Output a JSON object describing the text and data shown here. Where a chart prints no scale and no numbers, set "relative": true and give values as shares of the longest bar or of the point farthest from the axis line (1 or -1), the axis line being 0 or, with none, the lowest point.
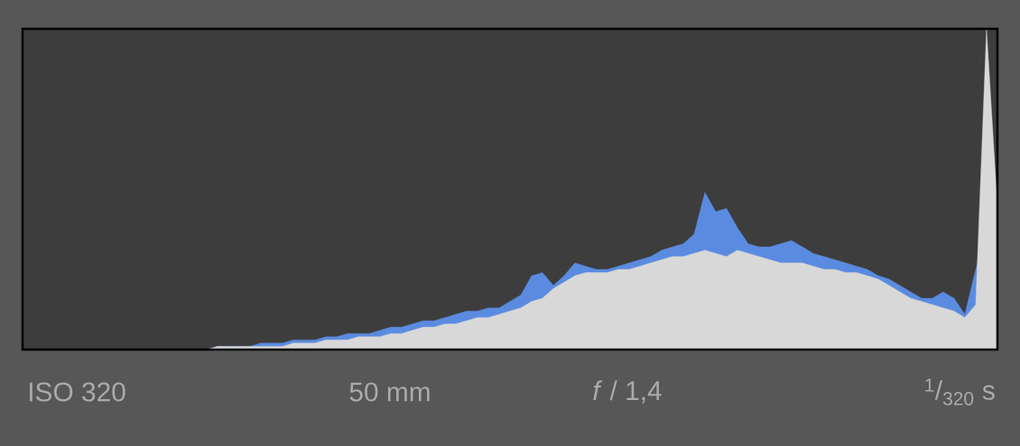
{
  "chart_data": {
    "type": "area",
    "relative": true,
    "categories": [
      null,
      null,
      null,
      null,
      null,
      null,
      null,
      null,
      null,
      null,
      null,
      null,
      null,
      null,
      null,
      null,
      null,
      null,
      null,
      null,
      null,
      null,
      null,
      null,
      null,
      null,
      null,
      null,
      null,
      null,
      null,
      null,
      null,
      null,
      null,
      null,
      null,
      null,
      null,
      null,
      null,
      null,
      null,
      null,
      null,
      null,
      null,
      null,
      null,
      null,
      null,
      null,
      null,
      null,
      null,
      null,
      null,
      null,
      null,
      null,
      null,
      null,
      null,
      null,
      null,
      null,
      null,
      null,
      null,
      null,
      null,
      null,
      null,
      null,
      null,
      null,
      null,
      null,
      null,
      null,
      null,
      null,
      null,
      null,
      null,
      null,
      null,
      null,
      null,
      null,
      null
    ],
    "series": [
      {
        "color": "#5b8be0",
        "values": [
          0,
          0,
          0,
          0,
          0,
          0,
          0,
          0,
          0,
          0,
          0,
          0,
          0,
          0,
          0,
          0,
          0,
          0,
          0.01,
          0.01,
          0.01,
          0.01,
          0.02,
          0.02,
          0.02,
          0.03,
          0.03,
          0.03,
          0.04,
          0.04,
          0.05,
          0.05,
          0.05,
          0.06,
          0.07,
          0.07,
          0.08,
          0.09,
          0.09,
          0.1,
          0.11,
          0.12,
          0.12,
          0.13,
          0.13,
          0.15,
          0.17,
          0.23,
          0.24,
          0.2,
          0.23,
          0.27,
          0.26,
          0.25,
          0.25,
          0.26,
          0.27,
          0.28,
          0.29,
          0.31,
          0.32,
          0.33,
          0.36,
          0.49,
          0.43,
          0.44,
          0.38,
          0.33,
          0.32,
          0.32,
          0.33,
          0.34,
          0.32,
          0.3,
          0.29,
          0.28,
          0.27,
          0.26,
          0.25,
          0.23,
          0.22,
          0.2,
          0.18,
          0.16,
          0.16,
          0.18,
          0.16,
          0.11,
          0.25,
          null,
          0.5
        ]
      },
      {
        "color": "#d8d8d8",
        "values": [
          0,
          0,
          0,
          0,
          0,
          0,
          0,
          0,
          0,
          0,
          0,
          0,
          0,
          0,
          0,
          0,
          0,
          0,
          0.01,
          0.01,
          0.01,
          0.01,
          0.01,
          0.01,
          0.01,
          0.02,
          0.02,
          0.02,
          0.03,
          0.03,
          0.03,
          0.04,
          0.04,
          0.04,
          0.05,
          0.05,
          0.06,
          0.07,
          0.07,
          0.08,
          0.08,
          0.09,
          0.1,
          0.1,
          0.11,
          0.12,
          0.13,
          0.15,
          0.16,
          0.19,
          0.21,
          0.23,
          0.24,
          0.24,
          0.24,
          0.25,
          0.25,
          0.26,
          0.27,
          0.28,
          0.29,
          0.29,
          0.3,
          0.31,
          0.3,
          0.29,
          0.31,
          0.3,
          0.29,
          0.28,
          0.27,
          0.27,
          0.27,
          0.26,
          0.25,
          0.25,
          0.24,
          0.24,
          0.23,
          0.22,
          0.2,
          0.18,
          0.16,
          0.15,
          0.14,
          0.13,
          0.12,
          0.1,
          0.14,
          1,
          0.45
        ]
      }
    ],
    "annotations": [
      "ISO 320",
      "50 mm",
      "*f* / 1,4",
      "$^{1}$/$_{320}$ s"
    ]
  }
}
